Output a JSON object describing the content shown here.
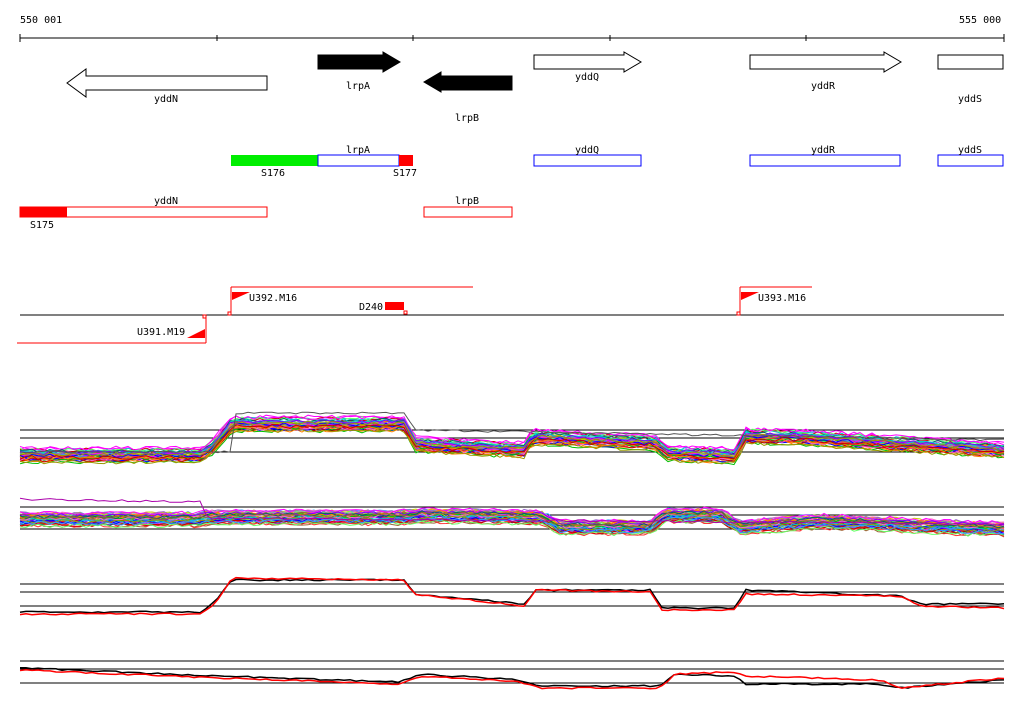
{
  "coordinates": {
    "start_label": "550 001",
    "end_label": "555 000"
  },
  "colors": {
    "annotation_red": "#ff0000",
    "mrna_green": "#00ee00",
    "cds_blue": "#0000ff",
    "feature_black": "#000000"
  },
  "genes": [
    {
      "label": "yddN",
      "strand": "reverse",
      "filled": false
    },
    {
      "label": "lrpA",
      "strand": "forward",
      "filled": true
    },
    {
      "label": "lrpB",
      "strand": "reverse",
      "filled": true
    },
    {
      "label": "yddQ",
      "strand": "forward",
      "filled": false
    },
    {
      "label": "yddR",
      "strand": "forward",
      "filled": false
    },
    {
      "label": "yddS",
      "strand": "forward",
      "filled": false
    }
  ],
  "transcript_track_1": [
    {
      "label": "lrpA"
    },
    {
      "label": "yddQ"
    },
    {
      "label": "yddR"
    },
    {
      "label": "yddS"
    }
  ],
  "transcript_track_1_sites": [
    "S176",
    "S177"
  ],
  "transcript_track_2": [
    {
      "label": "yddN"
    },
    {
      "label": "lrpB"
    }
  ],
  "transcript_track_2_sites": [
    "S175"
  ],
  "regulatory": {
    "upshifts": [
      "U392.M16",
      "U393.M16"
    ],
    "downshift_reverse": "U391.M19",
    "deletion": "D240"
  },
  "expression_tracks": [
    {
      "kind": "multi-sample",
      "strand": "forward"
    },
    {
      "kind": "multi-sample",
      "strand": "reverse"
    },
    {
      "kind": "summary",
      "strand": "forward"
    },
    {
      "kind": "summary",
      "strand": "reverse"
    }
  ]
}
